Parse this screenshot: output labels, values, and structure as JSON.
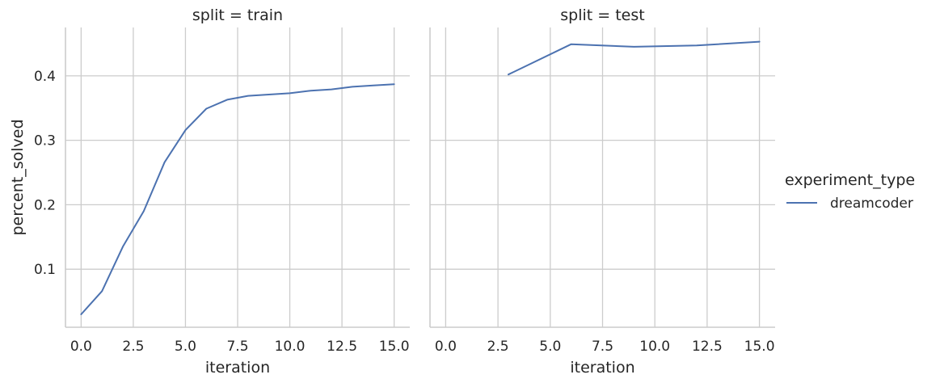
{
  "chart_data": [
    {
      "type": "line",
      "title": "split = train",
      "xlabel": "iteration",
      "ylabel": "percent_solved",
      "xlim": [
        -0.75,
        15.75
      ],
      "ylim": [
        0.01,
        0.475
      ],
      "xticks": [
        0.0,
        2.5,
        5.0,
        7.5,
        10.0,
        12.5,
        15.0
      ],
      "xtick_labels": [
        "0.0",
        "2.5",
        "5.0",
        "7.5",
        "10.0",
        "12.5",
        "15.0"
      ],
      "yticks": [
        0.1,
        0.2,
        0.3,
        0.4
      ],
      "ytick_labels": [
        "0.1",
        "0.2",
        "0.3",
        "0.4"
      ],
      "grid": true,
      "series": [
        {
          "name": "dreamcoder",
          "color": "#4c72b0",
          "x": [
            0,
            1,
            2,
            3,
            4,
            5,
            6,
            7,
            8,
            9,
            10,
            11,
            12,
            13,
            14,
            15
          ],
          "y": [
            0.03,
            0.066,
            0.135,
            0.19,
            0.266,
            0.316,
            0.349,
            0.363,
            0.369,
            0.371,
            0.373,
            0.377,
            0.379,
            0.383,
            0.385,
            0.387
          ]
        }
      ]
    },
    {
      "type": "line",
      "title": "split = test",
      "xlabel": "iteration",
      "ylabel": "",
      "xlim": [
        -0.75,
        15.75
      ],
      "ylim": [
        0.01,
        0.475
      ],
      "xticks": [
        0.0,
        2.5,
        5.0,
        7.5,
        10.0,
        12.5,
        15.0
      ],
      "xtick_labels": [
        "0.0",
        "2.5",
        "5.0",
        "7.5",
        "10.0",
        "12.5",
        "15.0"
      ],
      "yticks": [
        0.1,
        0.2,
        0.3,
        0.4
      ],
      "ytick_labels": [],
      "grid": true,
      "series": [
        {
          "name": "dreamcoder",
          "color": "#4c72b0",
          "x": [
            3,
            6,
            9,
            12,
            15
          ],
          "y": [
            0.402,
            0.449,
            0.445,
            0.447,
            0.453
          ]
        }
      ]
    }
  ],
  "legend": {
    "title": "experiment_type",
    "placement": "right",
    "entries": [
      {
        "label": "dreamcoder",
        "color": "#4c72b0"
      }
    ]
  }
}
